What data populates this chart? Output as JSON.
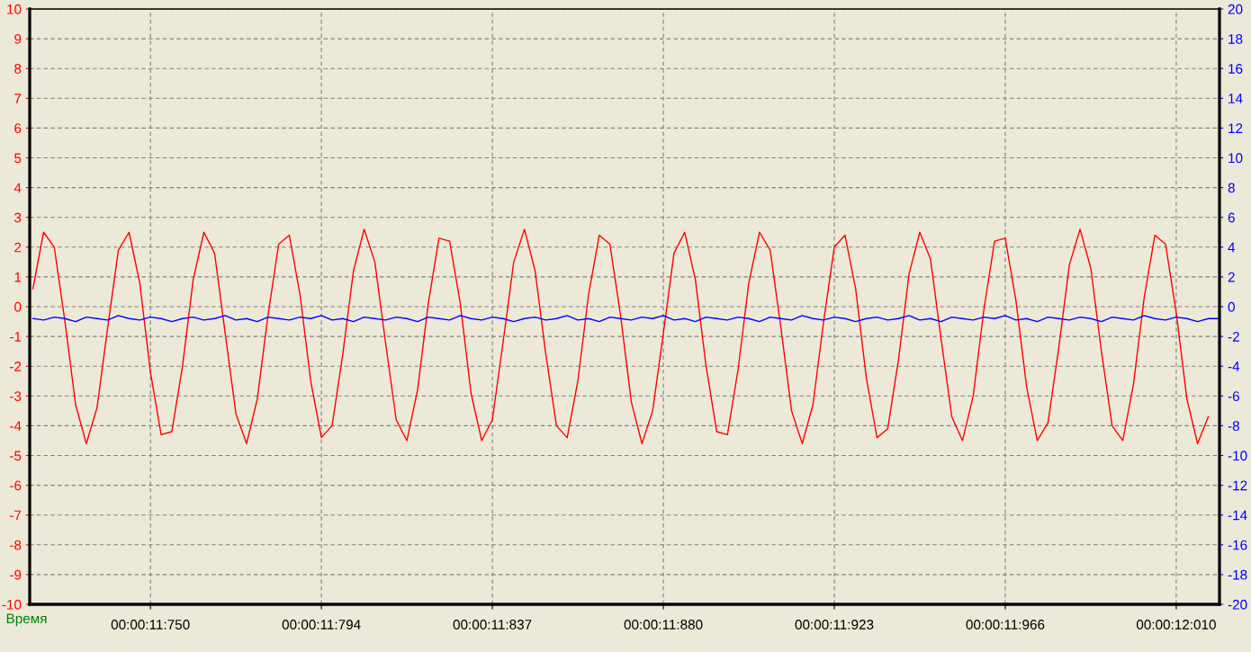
{
  "chart_data": {
    "type": "line",
    "xlabel": "Время",
    "categories": [
      null,
      null,
      null,
      null,
      null,
      null,
      null,
      null,
      null,
      null,
      null,
      "00:00:11:750",
      null,
      null,
      null,
      null,
      null,
      null,
      null,
      null,
      null,
      null,
      null,
      null,
      null,
      null,
      null,
      "00:00:11:794",
      null,
      null,
      null,
      null,
      null,
      null,
      null,
      null,
      null,
      null,
      null,
      null,
      null,
      null,
      null,
      "00:00:11:837",
      null,
      null,
      null,
      null,
      null,
      null,
      null,
      null,
      null,
      null,
      null,
      null,
      null,
      null,
      null,
      "00:00:11:880",
      null,
      null,
      null,
      null,
      null,
      null,
      null,
      null,
      null,
      null,
      null,
      null,
      null,
      null,
      null,
      "00:00:11:923",
      null,
      null,
      null,
      null,
      null,
      null,
      null,
      null,
      null,
      null,
      null,
      null,
      null,
      null,
      null,
      "00:00:11:966",
      null,
      null,
      null,
      null,
      null,
      null,
      null,
      null,
      null,
      null,
      null,
      null,
      null,
      null,
      null,
      "00:00:12:010",
      null,
      null,
      null,
      null
    ],
    "ylim": [
      -10,
      10
    ],
    "yticks": [
      -10,
      -9,
      -8,
      -7,
      -6,
      -5,
      -4,
      -3,
      -2,
      -1,
      0,
      1,
      2,
      3,
      4,
      5,
      6,
      7,
      8,
      9,
      10
    ],
    "y2lim": [
      -20,
      20
    ],
    "y2ticks": [
      -20,
      -18,
      -16,
      -14,
      -12,
      -10,
      -8,
      -6,
      -4,
      -2,
      0,
      2,
      4,
      6,
      8,
      10,
      12,
      14,
      16,
      18,
      20
    ],
    "grid": true,
    "line_style": "solid",
    "marker": "none",
    "series": [
      {
        "color": "#ff0000",
        "values": [
          0.6,
          2.5,
          2.0,
          -0.5,
          -3.3,
          -4.6,
          -3.4,
          -0.7,
          1.9,
          2.5,
          0.8,
          -2.2,
          -4.3,
          -4.2,
          -2.0,
          0.9,
          2.5,
          1.8,
          -0.9,
          -3.6,
          -4.6,
          -3.1,
          -0.3,
          2.1,
          2.4,
          0.4,
          -2.5,
          -4.4,
          -4.0,
          -1.6,
          1.2,
          2.6,
          1.5,
          -1.2,
          -3.8,
          -4.5,
          -2.8,
          0.1,
          2.3,
          2.2,
          0.1,
          -2.9,
          -4.5,
          -3.8,
          -1.2,
          1.5,
          2.6,
          1.2,
          -1.6,
          -4.0,
          -4.4,
          -2.5,
          0.4,
          2.4,
          2.1,
          -0.3,
          -3.2,
          -4.6,
          -3.5,
          -0.9,
          1.8,
          2.5,
          0.9,
          -2.0,
          -4.2,
          -4.3,
          -2.1,
          0.8,
          2.5,
          1.9,
          -0.7,
          -3.5,
          -4.6,
          -3.3,
          -0.5,
          2.0,
          2.4,
          0.6,
          -2.4,
          -4.4,
          -4.1,
          -1.8,
          1.1,
          2.5,
          1.6,
          -1.1,
          -3.7,
          -4.5,
          -3.0,
          -0.1,
          2.2,
          2.3,
          0.2,
          -2.7,
          -4.5,
          -3.9,
          -1.4,
          1.4,
          2.6,
          1.3,
          -1.5,
          -4.0,
          -4.5,
          -2.6,
          0.3,
          2.4,
          2.1,
          -0.2,
          -3.1,
          -4.6,
          -3.7,
          null
        ]
      },
      {
        "color": "#0000ff",
        "axis": "y2",
        "values": [
          -0.8,
          -0.9,
          -0.7,
          -0.8,
          -1.0,
          -0.7,
          -0.8,
          -0.9,
          -0.6,
          -0.8,
          -0.9,
          -0.7,
          -0.8,
          -1.0,
          -0.8,
          -0.7,
          -0.9,
          -0.8,
          -0.6,
          -0.9,
          -0.8,
          -1.0,
          -0.7,
          -0.8,
          -0.9,
          -0.7,
          -0.8,
          -0.6,
          -0.9,
          -0.8,
          -1.0,
          -0.7,
          -0.8,
          -0.9,
          -0.7,
          -0.8,
          -1.0,
          -0.7,
          -0.8,
          -0.9,
          -0.6,
          -0.8,
          -0.9,
          -0.7,
          -0.8,
          -1.0,
          -0.8,
          -0.7,
          -0.9,
          -0.8,
          -0.6,
          -0.9,
          -0.8,
          -1.0,
          -0.7,
          -0.8,
          -0.9,
          -0.7,
          -0.8,
          -0.6,
          -0.9,
          -0.8,
          -1.0,
          -0.7,
          -0.8,
          -0.9,
          -0.7,
          -0.8,
          -1.0,
          -0.7,
          -0.8,
          -0.9,
          -0.6,
          -0.8,
          -0.9,
          -0.7,
          -0.8,
          -1.0,
          -0.8,
          -0.7,
          -0.9,
          -0.8,
          -0.6,
          -0.9,
          -0.8,
          -1.0,
          -0.7,
          -0.8,
          -0.9,
          -0.7,
          -0.8,
          -0.6,
          -0.9,
          -0.8,
          -1.0,
          -0.7,
          -0.8,
          -0.9,
          -0.7,
          -0.8,
          -1.0,
          -0.7,
          -0.8,
          -0.9,
          -0.6,
          -0.8,
          -0.9,
          -0.7,
          -0.8,
          -1.0,
          -0.8,
          -0.8
        ]
      }
    ]
  }
}
